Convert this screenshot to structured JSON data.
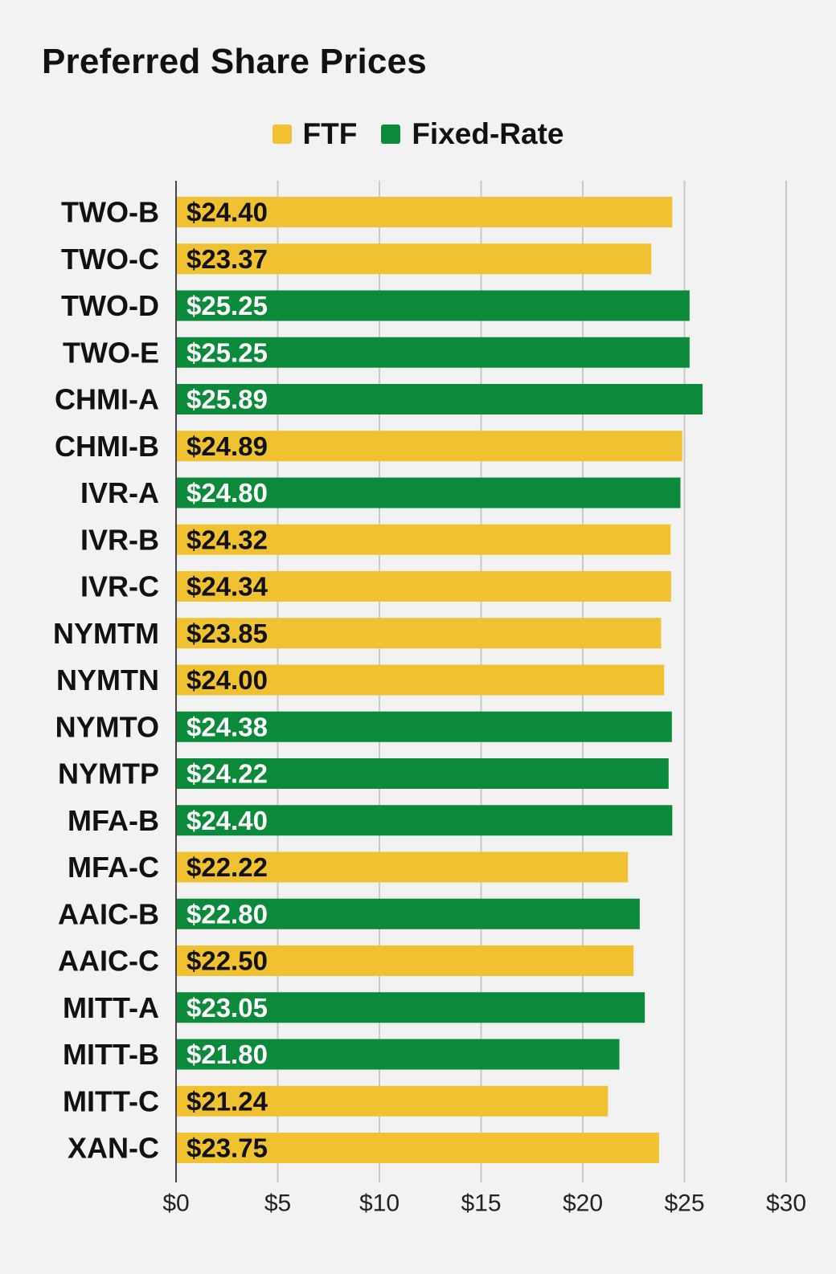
{
  "colors": {
    "ftf": "#f0c231",
    "fixed_rate": "#0a8a3a",
    "grid": "#c8c8c8",
    "axis": "#444444"
  },
  "chart_data": {
    "type": "bar",
    "orientation": "horizontal",
    "title": "Preferred Share Prices",
    "xlabel": "",
    "ylabel": "",
    "xlim": [
      0,
      30
    ],
    "x_ticks": [
      0,
      5,
      10,
      15,
      20,
      25,
      30
    ],
    "x_tick_labels": [
      "$0",
      "$5",
      "$10",
      "$15",
      "$20",
      "$25",
      "$30"
    ],
    "grid": true,
    "legend": {
      "position": "top-center",
      "entries": [
        {
          "key": "ftf",
          "label": "FTF"
        },
        {
          "key": "fixed_rate",
          "label": "Fixed-Rate"
        }
      ]
    },
    "categories": [
      "TWO-B",
      "TWO-C",
      "TWO-D",
      "TWO-E",
      "CHMI-A",
      "CHMI-B",
      "IVR-A",
      "IVR-B",
      "IVR-C",
      "NYMTM",
      "NYMTN",
      "NYMTO",
      "NYMTP",
      "MFA-B",
      "MFA-C",
      "AAIC-B",
      "AAIC-C",
      "MITT-A",
      "MITT-B",
      "MITT-C",
      "XAN-C"
    ],
    "values": [
      24.4,
      23.37,
      25.25,
      25.25,
      25.89,
      24.89,
      24.8,
      24.32,
      24.34,
      23.85,
      24.0,
      24.38,
      24.22,
      24.4,
      22.22,
      22.8,
      22.5,
      23.05,
      21.8,
      21.24,
      23.75
    ],
    "value_labels": [
      "$24.40",
      "$23.37",
      "$25.25",
      "$25.25",
      "$25.89",
      "$24.89",
      "$24.80",
      "$24.32",
      "$24.34",
      "$23.85",
      "$24.00",
      "$24.38",
      "$24.22",
      "$24.40",
      "$22.22",
      "$22.80",
      "$22.50",
      "$23.05",
      "$21.80",
      "$21.24",
      "$23.75"
    ],
    "series_type": [
      "ftf",
      "ftf",
      "fixed_rate",
      "fixed_rate",
      "fixed_rate",
      "ftf",
      "fixed_rate",
      "ftf",
      "ftf",
      "ftf",
      "ftf",
      "fixed_rate",
      "fixed_rate",
      "fixed_rate",
      "ftf",
      "fixed_rate",
      "ftf",
      "fixed_rate",
      "fixed_rate",
      "ftf",
      "ftf"
    ]
  }
}
